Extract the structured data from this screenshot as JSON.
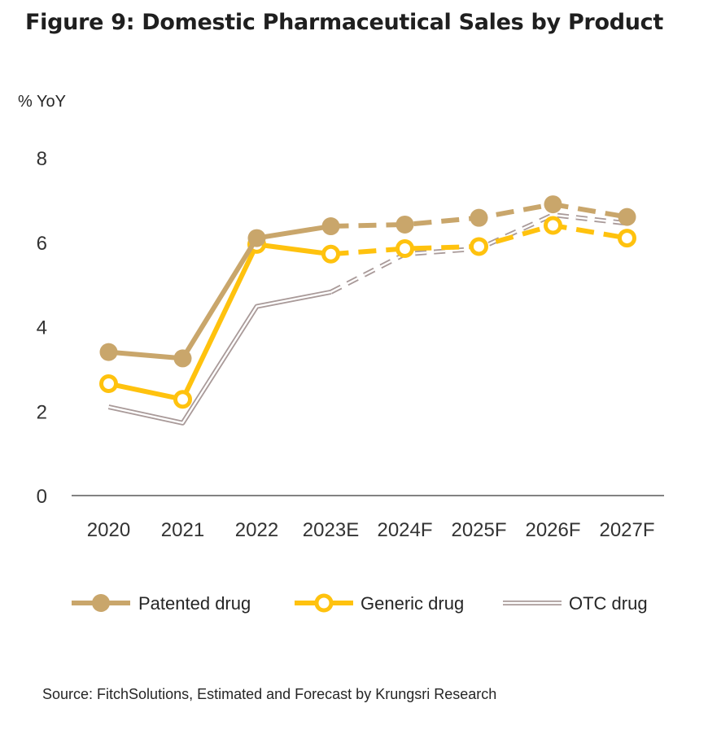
{
  "title": "Figure 9: Domestic Pharmaceutical Sales by Product",
  "unit_label": "% YoY",
  "source": "Source: FitchSolutions, Estimated and Forecast by Krungsri Research",
  "chart_data": {
    "type": "line",
    "title": "Figure 9: Domestic Pharmaceutical Sales by Product",
    "ylabel": "% YoY",
    "xlabel": "",
    "ylim": [
      0,
      8
    ],
    "yticks": [
      0,
      2,
      4,
      6,
      8
    ],
    "categories": [
      "2020",
      "2021",
      "2022",
      "2023E",
      "2024F",
      "2025F",
      "2026F",
      "2027F"
    ],
    "grid": false,
    "legend_position": "bottom",
    "forecast_from_index": 3,
    "series": [
      {
        "name": "Patented drug",
        "color": "#C9A66B",
        "style": "filled-marker",
        "values": [
          3.4,
          3.25,
          6.1,
          6.38,
          6.42,
          6.58,
          6.9,
          6.6
        ]
      },
      {
        "name": "Generic drug",
        "color": "#FFC20E",
        "style": "hollow-marker",
        "values": [
          2.65,
          2.28,
          5.95,
          5.72,
          5.85,
          5.9,
          6.4,
          6.1
        ]
      },
      {
        "name": "OTC drug",
        "color": "#A99A99",
        "style": "double-line",
        "values": [
          2.1,
          1.72,
          4.48,
          4.82,
          5.72,
          5.85,
          6.65,
          6.45
        ]
      }
    ]
  }
}
